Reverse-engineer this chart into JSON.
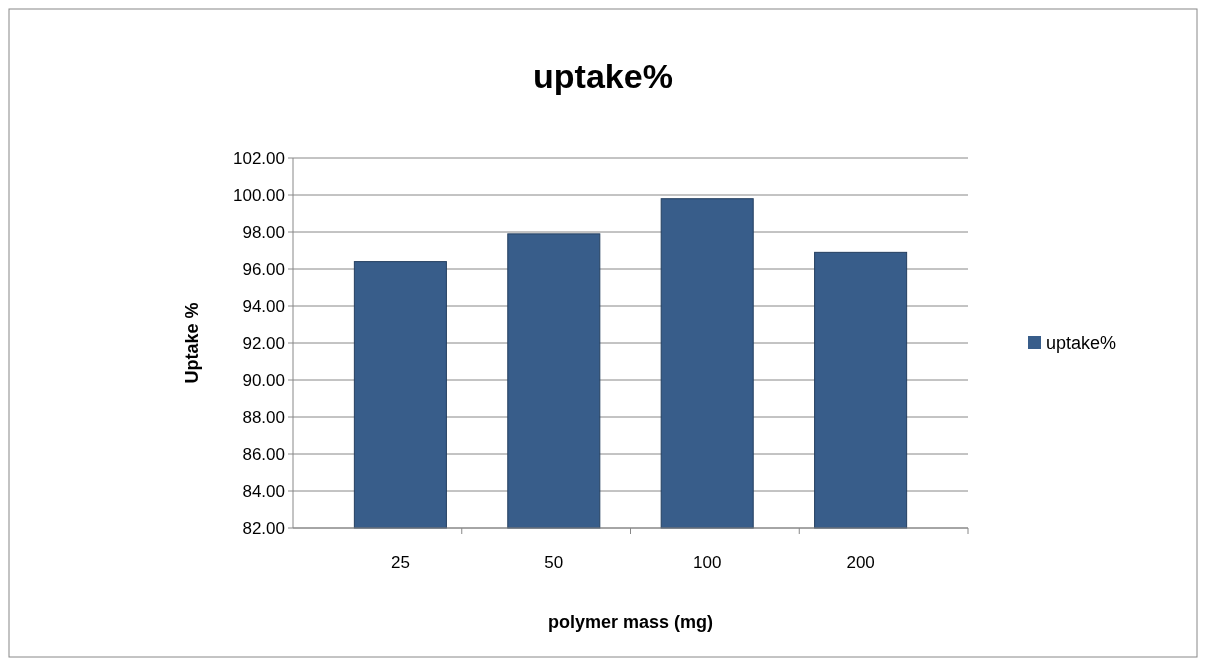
{
  "chart_data": {
    "type": "bar",
    "title": "uptake%",
    "xlabel": "polymer mass (mg)",
    "ylabel": "Uptake %",
    "categories": [
      "25",
      "50",
      "100",
      "200"
    ],
    "series": [
      {
        "name": "uptake%",
        "color": "#385d8a",
        "values": [
          96.4,
          97.9,
          99.8,
          96.9
        ]
      }
    ],
    "ylim": [
      82,
      102
    ],
    "yticks": [
      {
        "value": 82,
        "label": "82.00"
      },
      {
        "value": 84,
        "label": "84.00"
      },
      {
        "value": 86,
        "label": "86.00"
      },
      {
        "value": 88,
        "label": "88.00"
      },
      {
        "value": 90,
        "label": "90.00"
      },
      {
        "value": 92,
        "label": "92.00"
      },
      {
        "value": 94,
        "label": "94.00"
      },
      {
        "value": 96,
        "label": "96.00"
      },
      {
        "value": 98,
        "label": "98.00"
      },
      {
        "value": 100,
        "label": "100.00"
      },
      {
        "value": 102,
        "label": "102.00"
      }
    ],
    "grid": "y",
    "legend": "right"
  }
}
